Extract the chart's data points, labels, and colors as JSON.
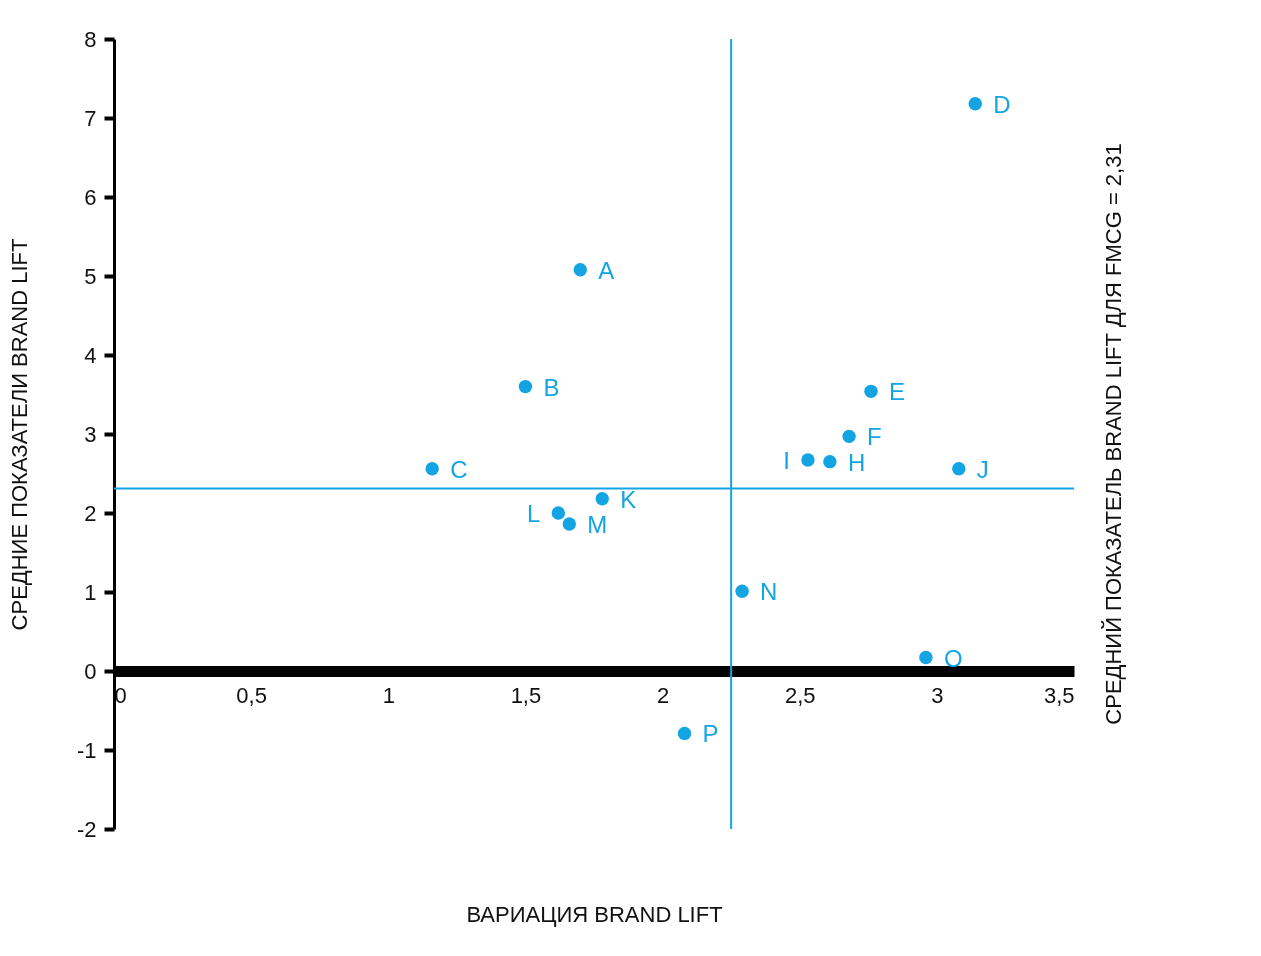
{
  "chart_data": {
    "type": "scatter",
    "xlabel": "ВАРИАЦИЯ BRAND LIFT",
    "ylabel": "СРЕДНИЕ ПОКАЗАТЕЛИ BRAND LIFT",
    "x": [
      1.7,
      1.5,
      1.16,
      3.14,
      2.76,
      2.68,
      2.61,
      2.53,
      3.08,
      1.78,
      1.62,
      1.66,
      2.29,
      2.96,
      2.08
    ],
    "series": [
      {
        "color": "#13a4e3",
        "values": [
          5.08,
          3.6,
          2.56,
          7.18,
          3.54,
          2.97,
          2.65,
          2.67,
          2.56,
          2.18,
          2.0,
          1.86,
          1.01,
          0.17,
          -0.79
        ]
      }
    ],
    "xlim": [
      0,
      3.5
    ],
    "ylim": [
      -2,
      8
    ],
    "xticks": [
      0,
      {
        "value": 0.5,
        "label": "0,5"
      },
      1,
      {
        "value": 1.5,
        "label": "1,5"
      },
      2,
      {
        "value": 2.5,
        "label": "2,5"
      },
      3,
      {
        "value": 3.5,
        "label": "3,5"
      }
    ],
    "yticks": [
      -2,
      -1,
      0,
      1,
      2,
      3,
      4,
      5,
      6,
      7,
      8
    ],
    "marker": "circle",
    "grid": false,
    "ref_lines": [
      {
        "axis": "y",
        "value": 2.31,
        "label": "СРЕДНИЙ ПОКАЗАТЕЛЬ BRAND LIFT ДЛЯ FMCG = 2,31",
        "color": "#13a4e3"
      },
      {
        "axis": "x",
        "value": 2.25,
        "color": "#13a4e3"
      }
    ],
    "annotations": [
      {
        "text": "A",
        "x": 1.7,
        "y": 5.08
      },
      {
        "text": "B",
        "x": 1.5,
        "y": 3.6
      },
      {
        "text": "C",
        "x": 1.16,
        "y": 2.56
      },
      {
        "text": "D",
        "x": 3.14,
        "y": 7.18
      },
      {
        "text": "E",
        "x": 2.76,
        "y": 3.54
      },
      {
        "text": "F",
        "x": 2.68,
        "y": 2.97
      },
      {
        "text": "H",
        "x": 2.61,
        "y": 2.65
      },
      {
        "text": "I",
        "x": 2.53,
        "y": 2.67
      },
      {
        "text": "J",
        "x": 3.08,
        "y": 2.56
      },
      {
        "text": "K",
        "x": 1.78,
        "y": 2.18
      },
      {
        "text": "L",
        "x": 1.62,
        "y": 2.0
      },
      {
        "text": "M",
        "x": 1.66,
        "y": 1.86
      },
      {
        "text": "N",
        "x": 2.29,
        "y": 1.01
      },
      {
        "text": "O",
        "x": 2.96,
        "y": 0.17
      },
      {
        "text": "P",
        "x": 2.08,
        "y": -0.79
      }
    ]
  }
}
